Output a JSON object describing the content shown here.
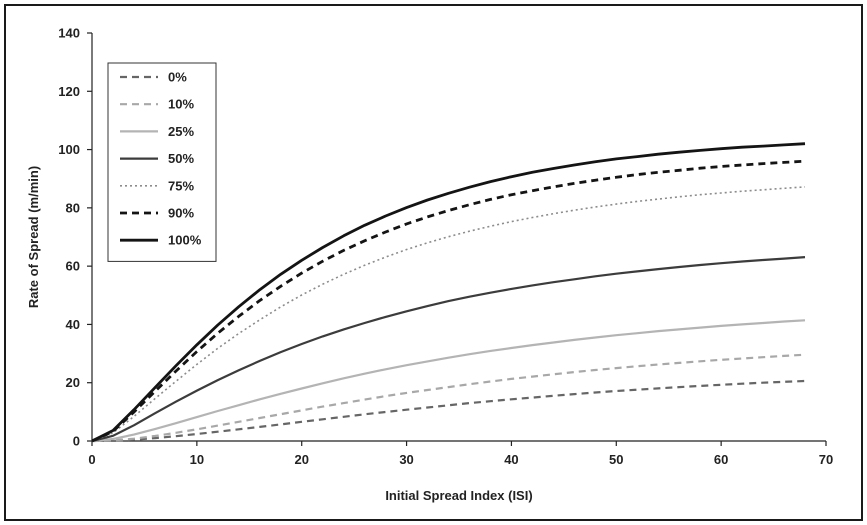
{
  "chart_data": {
    "type": "line",
    "title": "",
    "xlabel": "Initial Spread Index (ISI)",
    "ylabel": "Rate of Spread (m/min)",
    "xlim": [
      0,
      70
    ],
    "ylim": [
      0,
      140
    ],
    "xticks": [
      0,
      10,
      20,
      30,
      40,
      50,
      60,
      70
    ],
    "yticks": [
      0,
      20,
      40,
      60,
      80,
      100,
      120,
      140
    ],
    "grid": false,
    "legend_position": "top-left",
    "x": [
      0,
      2,
      4,
      6,
      8,
      10,
      12,
      14,
      16,
      18,
      20,
      22,
      24,
      26,
      28,
      30,
      32,
      34,
      36,
      38,
      40,
      42,
      44,
      46,
      48,
      50,
      52,
      54,
      56,
      58,
      60,
      62,
      64,
      66,
      68
    ],
    "series": [
      {
        "name": "0%",
        "color": "#666666",
        "style": "dashed",
        "values": [
          0.0,
          0.1,
          0.45,
          1.0,
          1.65,
          2.4,
          3.2,
          4.0,
          4.85,
          5.7,
          6.6,
          7.45,
          8.3,
          9.15,
          9.95,
          10.75,
          11.5,
          12.25,
          13.0,
          13.65,
          14.3,
          14.9,
          15.5,
          16.1,
          16.65,
          17.15,
          17.6,
          18.05,
          18.5,
          18.9,
          19.3,
          19.65,
          20.0,
          20.3,
          20.6
        ]
      },
      {
        "name": "10%",
        "color": "#a8a8a8",
        "style": "dashed",
        "values": [
          0.0,
          0.2,
          0.8,
          1.7,
          2.8,
          4.0,
          5.3,
          6.6,
          7.9,
          9.2,
          10.5,
          11.8,
          13.0,
          14.2,
          15.4,
          16.5,
          17.5,
          18.5,
          19.5,
          20.4,
          21.3,
          22.1,
          22.9,
          23.65,
          24.35,
          25.0,
          25.65,
          26.25,
          26.8,
          27.35,
          27.85,
          28.3,
          28.75,
          29.2,
          29.6
        ]
      },
      {
        "name": "25%",
        "color": "#b4b4b4",
        "style": "solid",
        "values": [
          0.0,
          0.7,
          2.2,
          4.1,
          6.1,
          8.2,
          10.3,
          12.3,
          14.3,
          16.2,
          18.0,
          19.8,
          21.5,
          23.1,
          24.6,
          26.0,
          27.3,
          28.6,
          29.8,
          30.9,
          31.9,
          32.9,
          33.8,
          34.7,
          35.5,
          36.3,
          37.0,
          37.7,
          38.3,
          38.9,
          39.5,
          40.0,
          40.5,
          41.0,
          41.4
        ]
      },
      {
        "name": "50%",
        "color": "#3c3c3c",
        "style": "solid",
        "values": [
          0.0,
          1.8,
          5.4,
          9.5,
          13.5,
          17.3,
          20.9,
          24.3,
          27.5,
          30.5,
          33.3,
          35.9,
          38.3,
          40.5,
          42.6,
          44.5,
          46.3,
          48.0,
          49.5,
          50.9,
          52.2,
          53.4,
          54.5,
          55.5,
          56.5,
          57.4,
          58.2,
          59.0,
          59.7,
          60.4,
          61.0,
          61.6,
          62.1,
          62.6,
          63.1
        ]
      },
      {
        "name": "75%",
        "color": "#8c8c8c",
        "style": "dotted",
        "values": [
          0.0,
          2.8,
          8.4,
          14.5,
          20.5,
          26.3,
          31.8,
          36.9,
          41.6,
          46.0,
          50.1,
          53.8,
          57.2,
          60.3,
          63.1,
          65.7,
          68.0,
          70.1,
          72.0,
          73.7,
          75.3,
          76.7,
          78.0,
          79.2,
          80.3,
          81.3,
          82.2,
          83.0,
          83.8,
          84.5,
          85.1,
          85.7,
          86.2,
          86.7,
          87.2
        ]
      },
      {
        "name": "90%",
        "color": "#141414",
        "style": "dashed",
        "values": [
          0.0,
          3.3,
          9.9,
          17.0,
          24.0,
          30.7,
          37.0,
          42.8,
          48.2,
          53.1,
          57.6,
          61.7,
          65.4,
          68.7,
          71.7,
          74.5,
          76.9,
          79.1,
          81.1,
          82.9,
          84.5,
          85.9,
          87.2,
          88.4,
          89.5,
          90.5,
          91.4,
          92.2,
          92.9,
          93.6,
          94.2,
          94.7,
          95.2,
          95.6,
          96.0
        ]
      },
      {
        "name": "100%",
        "color": "#141414",
        "style": "solid",
        "values": [
          0.0,
          3.6,
          10.7,
          18.3,
          25.8,
          33.0,
          39.8,
          46.1,
          51.9,
          57.2,
          62.0,
          66.4,
          70.4,
          74.0,
          77.2,
          80.1,
          82.7,
          85.0,
          87.1,
          89.0,
          90.7,
          92.2,
          93.5,
          94.7,
          95.8,
          96.8,
          97.6,
          98.4,
          99.1,
          99.7,
          100.3,
          100.8,
          101.2,
          101.6,
          102.0
        ]
      }
    ]
  }
}
